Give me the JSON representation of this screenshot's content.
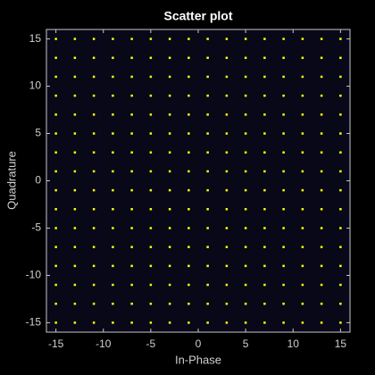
{
  "chart_data": {
    "type": "scatter",
    "title": "Scatter plot",
    "x_label": "In-Phase",
    "y_label": "Quadrature",
    "color": "#ffff00",
    "xlim": [
      -16,
      16
    ],
    "ylim": [
      -16,
      16
    ],
    "xticks": [
      -15,
      -10,
      -5,
      0,
      5,
      10,
      15
    ],
    "yticks": [
      -15,
      -10,
      -5,
      0,
      5,
      10,
      15
    ],
    "x": [
      -15,
      -15,
      -15,
      -15,
      -15,
      -15,
      -15,
      -15,
      -15,
      -15,
      -15,
      -15,
      -15,
      -15,
      -15,
      -15,
      -13,
      -13,
      -13,
      -13,
      -13,
      -13,
      -13,
      -13,
      -13,
      -13,
      -13,
      -13,
      -13,
      -13,
      -13,
      -13,
      -11,
      -11,
      -11,
      -11,
      -11,
      -11,
      -11,
      -11,
      -11,
      -11,
      -11,
      -11,
      -11,
      -11,
      -11,
      -11,
      -9,
      -9,
      -9,
      -9,
      -9,
      -9,
      -9,
      -9,
      -9,
      -9,
      -9,
      -9,
      -9,
      -9,
      -9,
      -9,
      -7,
      -7,
      -7,
      -7,
      -7,
      -7,
      -7,
      -7,
      -7,
      -7,
      -7,
      -7,
      -7,
      -7,
      -7,
      -7,
      -5,
      -5,
      -5,
      -5,
      -5,
      -5,
      -5,
      -5,
      -5,
      -5,
      -5,
      -5,
      -5,
      -5,
      -5,
      -5,
      -3,
      -3,
      -3,
      -3,
      -3,
      -3,
      -3,
      -3,
      -3,
      -3,
      -3,
      -3,
      -3,
      -3,
      -3,
      -3,
      -1,
      -1,
      -1,
      -1,
      -1,
      -1,
      -1,
      -1,
      -1,
      -1,
      -1,
      -1,
      -1,
      -1,
      -1,
      -1,
      1,
      1,
      1,
      1,
      1,
      1,
      1,
      1,
      1,
      1,
      1,
      1,
      1,
      1,
      1,
      1,
      3,
      3,
      3,
      3,
      3,
      3,
      3,
      3,
      3,
      3,
      3,
      3,
      3,
      3,
      3,
      3,
      5,
      5,
      5,
      5,
      5,
      5,
      5,
      5,
      5,
      5,
      5,
      5,
      5,
      5,
      5,
      5,
      7,
      7,
      7,
      7,
      7,
      7,
      7,
      7,
      7,
      7,
      7,
      7,
      7,
      7,
      7,
      7,
      9,
      9,
      9,
      9,
      9,
      9,
      9,
      9,
      9,
      9,
      9,
      9,
      9,
      9,
      9,
      9,
      11,
      11,
      11,
      11,
      11,
      11,
      11,
      11,
      11,
      11,
      11,
      11,
      11,
      11,
      11,
      11,
      13,
      13,
      13,
      13,
      13,
      13,
      13,
      13,
      13,
      13,
      13,
      13,
      13,
      13,
      13,
      13,
      15,
      15,
      15,
      15,
      15,
      15,
      15,
      15,
      15,
      15,
      15,
      15,
      15,
      15,
      15,
      15
    ],
    "values": [
      -15,
      -13,
      -11,
      -9,
      -7,
      -5,
      -3,
      -1,
      1,
      3,
      5,
      7,
      9,
      11,
      13,
      15,
      -15,
      -13,
      -11,
      -9,
      -7,
      -5,
      -3,
      -1,
      1,
      3,
      5,
      7,
      9,
      11,
      13,
      15,
      -15,
      -13,
      -11,
      -9,
      -7,
      -5,
      -3,
      -1,
      1,
      3,
      5,
      7,
      9,
      11,
      13,
      15,
      -15,
      -13,
      -11,
      -9,
      -7,
      -5,
      -3,
      -1,
      1,
      3,
      5,
      7,
      9,
      11,
      13,
      15,
      -15,
      -13,
      -11,
      -9,
      -7,
      -5,
      -3,
      -1,
      1,
      3,
      5,
      7,
      9,
      11,
      13,
      15,
      -15,
      -13,
      -11,
      -9,
      -7,
      -5,
      -3,
      -1,
      1,
      3,
      5,
      7,
      9,
      11,
      13,
      15,
      -15,
      -13,
      -11,
      -9,
      -7,
      -5,
      -3,
      -1,
      1,
      3,
      5,
      7,
      9,
      11,
      13,
      15,
      -15,
      -13,
      -11,
      -9,
      -7,
      -5,
      -3,
      -1,
      1,
      3,
      5,
      7,
      9,
      11,
      13,
      15,
      -15,
      -13,
      -11,
      -9,
      -7,
      -5,
      -3,
      -1,
      1,
      3,
      5,
      7,
      9,
      11,
      13,
      15,
      -15,
      -13,
      -11,
      -9,
      -7,
      -5,
      -3,
      -1,
      1,
      3,
      5,
      7,
      9,
      11,
      13,
      15,
      -15,
      -13,
      -11,
      -9,
      -7,
      -5,
      -3,
      -1,
      1,
      3,
      5,
      7,
      9,
      11,
      13,
      15,
      -15,
      -13,
      -11,
      -9,
      -7,
      -5,
      -3,
      -1,
      1,
      3,
      5,
      7,
      9,
      11,
      13,
      15,
      -15,
      -13,
      -11,
      -9,
      -7,
      -5,
      -3,
      -1,
      1,
      3,
      5,
      7,
      9,
      11,
      13,
      15,
      -15,
      -13,
      -11,
      -9,
      -7,
      -5,
      -3,
      -1,
      1,
      3,
      5,
      7,
      9,
      11,
      13,
      15,
      -15,
      -13,
      -11,
      -9,
      -7,
      -5,
      -3,
      -1,
      1,
      3,
      5,
      7,
      9,
      11,
      13,
      15,
      -15,
      -13,
      -11,
      -9,
      -7,
      -5,
      -3,
      -1,
      1,
      3,
      5,
      7,
      9,
      11,
      13,
      15
    ]
  }
}
